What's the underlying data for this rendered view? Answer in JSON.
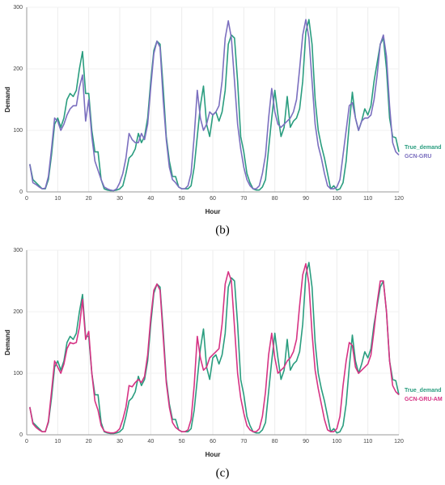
{
  "chart_data": [
    {
      "type": "line",
      "caption": "(b)",
      "xlabel": "Hour",
      "ylabel": "Demand",
      "xlim": [
        0,
        120
      ],
      "ylim": [
        0,
        300
      ],
      "xticks": [
        0,
        10,
        20,
        30,
        40,
        50,
        60,
        70,
        80,
        90,
        100,
        110,
        120
      ],
      "yticks": [
        0,
        100,
        200,
        300
      ],
      "grid": true,
      "x": [
        1,
        2,
        3,
        4,
        5,
        6,
        7,
        8,
        9,
        10,
        11,
        12,
        13,
        14,
        15,
        16,
        17,
        18,
        19,
        20,
        21,
        22,
        23,
        24,
        25,
        26,
        27,
        28,
        29,
        30,
        31,
        32,
        33,
        34,
        35,
        36,
        37,
        38,
        39,
        40,
        41,
        42,
        43,
        44,
        45,
        46,
        47,
        48,
        49,
        50,
        51,
        52,
        53,
        54,
        55,
        56,
        57,
        58,
        59,
        60,
        61,
        62,
        63,
        64,
        65,
        66,
        67,
        68,
        69,
        70,
        71,
        72,
        73,
        74,
        75,
        76,
        77,
        78,
        79,
        80,
        81,
        82,
        83,
        84,
        85,
        86,
        87,
        88,
        89,
        90,
        91,
        92,
        93,
        94,
        95,
        96,
        97,
        98,
        99,
        100,
        101,
        102,
        103,
        104,
        105,
        106,
        107,
        108,
        109,
        110,
        111,
        112,
        113,
        114,
        115,
        116,
        117,
        118,
        119,
        120
      ],
      "series": [
        {
          "name": "True_demand",
          "color": "#2a9d7f",
          "values": [
            45,
            20,
            15,
            10,
            5,
            5,
            20,
            60,
            110,
            120,
            105,
            120,
            150,
            160,
            155,
            165,
            200,
            228,
            160,
            160,
            100,
            65,
            65,
            20,
            5,
            3,
            2,
            2,
            3,
            5,
            10,
            30,
            55,
            60,
            70,
            95,
            80,
            90,
            120,
            180,
            230,
            245,
            240,
            170,
            90,
            50,
            25,
            25,
            8,
            5,
            5,
            5,
            10,
            40,
            90,
            140,
            172,
            110,
            90,
            125,
            130,
            115,
            130,
            165,
            240,
            255,
            250,
            180,
            90,
            65,
            30,
            15,
            5,
            3,
            3,
            8,
            20,
            70,
            120,
            165,
            125,
            90,
            105,
            155,
            105,
            115,
            120,
            135,
            180,
            260,
            280,
            240,
            150,
            100,
            75,
            55,
            30,
            5,
            10,
            3,
            5,
            15,
            50,
            110,
            162,
            120,
            100,
            115,
            135,
            125,
            140,
            180,
            210,
            240,
            250,
            200,
            120,
            90,
            88,
            65
          ]
        },
        {
          "name": "GCN-GRU",
          "color": "#7b6fbf",
          "values": [
            45,
            15,
            12,
            8,
            5,
            6,
            25,
            70,
            120,
            115,
            100,
            110,
            125,
            135,
            140,
            140,
            170,
            190,
            115,
            150,
            90,
            50,
            35,
            20,
            8,
            5,
            3,
            2,
            5,
            15,
            30,
            55,
            95,
            85,
            80,
            80,
            95,
            85,
            110,
            170,
            225,
            245,
            235,
            150,
            85,
            40,
            20,
            15,
            8,
            5,
            5,
            10,
            30,
            90,
            165,
            120,
            100,
            110,
            130,
            125,
            130,
            140,
            180,
            250,
            278,
            250,
            180,
            110,
            70,
            40,
            20,
            10,
            5,
            5,
            10,
            30,
            60,
            120,
            168,
            130,
            110,
            105,
            110,
            115,
            120,
            130,
            150,
            200,
            255,
            280,
            250,
            180,
            110,
            75,
            55,
            30,
            10,
            5,
            5,
            8,
            20,
            60,
            100,
            140,
            145,
            120,
            100,
            115,
            120,
            120,
            125,
            150,
            190,
            240,
            255,
            220,
            140,
            80,
            65,
            60
          ]
        }
      ]
    },
    {
      "type": "line",
      "caption": "(c)",
      "xlabel": "Hour",
      "ylabel": "Demand",
      "xlim": [
        0,
        120
      ],
      "ylim": [
        0,
        300
      ],
      "xticks": [
        0,
        10,
        20,
        30,
        40,
        50,
        60,
        70,
        80,
        90,
        100,
        110,
        120
      ],
      "yticks": [
        0,
        100,
        200,
        300
      ],
      "grid": true,
      "x": [
        1,
        2,
        3,
        4,
        5,
        6,
        7,
        8,
        9,
        10,
        11,
        12,
        13,
        14,
        15,
        16,
        17,
        18,
        19,
        20,
        21,
        22,
        23,
        24,
        25,
        26,
        27,
        28,
        29,
        30,
        31,
        32,
        33,
        34,
        35,
        36,
        37,
        38,
        39,
        40,
        41,
        42,
        43,
        44,
        45,
        46,
        47,
        48,
        49,
        50,
        51,
        52,
        53,
        54,
        55,
        56,
        57,
        58,
        59,
        60,
        61,
        62,
        63,
        64,
        65,
        66,
        67,
        68,
        69,
        70,
        71,
        72,
        73,
        74,
        75,
        76,
        77,
        78,
        79,
        80,
        81,
        82,
        83,
        84,
        85,
        86,
        87,
        88,
        89,
        90,
        91,
        92,
        93,
        94,
        95,
        96,
        97,
        98,
        99,
        100,
        101,
        102,
        103,
        104,
        105,
        106,
        107,
        108,
        109,
        110,
        111,
        112,
        113,
        114,
        115,
        116,
        117,
        118,
        119,
        120
      ],
      "series": [
        {
          "name": "True_demand",
          "color": "#2a9d7f",
          "values": [
            45,
            20,
            15,
            10,
            5,
            5,
            20,
            60,
            110,
            120,
            105,
            120,
            150,
            160,
            155,
            165,
            200,
            228,
            160,
            160,
            100,
            65,
            65,
            20,
            5,
            3,
            2,
            2,
            3,
            5,
            10,
            30,
            55,
            60,
            70,
            95,
            80,
            90,
            120,
            180,
            230,
            245,
            240,
            170,
            90,
            50,
            25,
            25,
            8,
            5,
            5,
            5,
            10,
            40,
            90,
            140,
            172,
            110,
            90,
            125,
            130,
            115,
            130,
            165,
            240,
            255,
            250,
            180,
            90,
            65,
            30,
            15,
            5,
            3,
            3,
            8,
            20,
            70,
            120,
            165,
            125,
            90,
            105,
            155,
            105,
            115,
            120,
            135,
            180,
            260,
            280,
            240,
            150,
            100,
            75,
            55,
            30,
            5,
            10,
            3,
            5,
            15,
            50,
            110,
            162,
            120,
            100,
            115,
            135,
            125,
            140,
            180,
            210,
            240,
            250,
            200,
            120,
            90,
            88,
            65
          ]
        },
        {
          "name": "GCN-GRU-AM",
          "color": "#d63384",
          "values": [
            45,
            18,
            12,
            8,
            5,
            5,
            22,
            70,
            120,
            110,
            100,
            115,
            140,
            150,
            148,
            150,
            175,
            220,
            155,
            168,
            100,
            55,
            40,
            15,
            6,
            4,
            3,
            3,
            5,
            10,
            25,
            45,
            80,
            78,
            85,
            90,
            85,
            95,
            130,
            190,
            235,
            245,
            235,
            160,
            85,
            45,
            20,
            12,
            8,
            5,
            5,
            8,
            25,
            80,
            160,
            125,
            105,
            110,
            125,
            130,
            135,
            140,
            180,
            245,
            265,
            250,
            175,
            100,
            60,
            35,
            15,
            8,
            5,
            5,
            10,
            30,
            70,
            130,
            165,
            125,
            100,
            105,
            110,
            120,
            125,
            135,
            155,
            210,
            260,
            278,
            245,
            165,
            105,
            75,
            50,
            25,
            8,
            5,
            5,
            10,
            30,
            80,
            120,
            150,
            145,
            110,
            100,
            105,
            110,
            115,
            130,
            170,
            215,
            250,
            250,
            200,
            120,
            80,
            70,
            65
          ]
        }
      ]
    }
  ]
}
